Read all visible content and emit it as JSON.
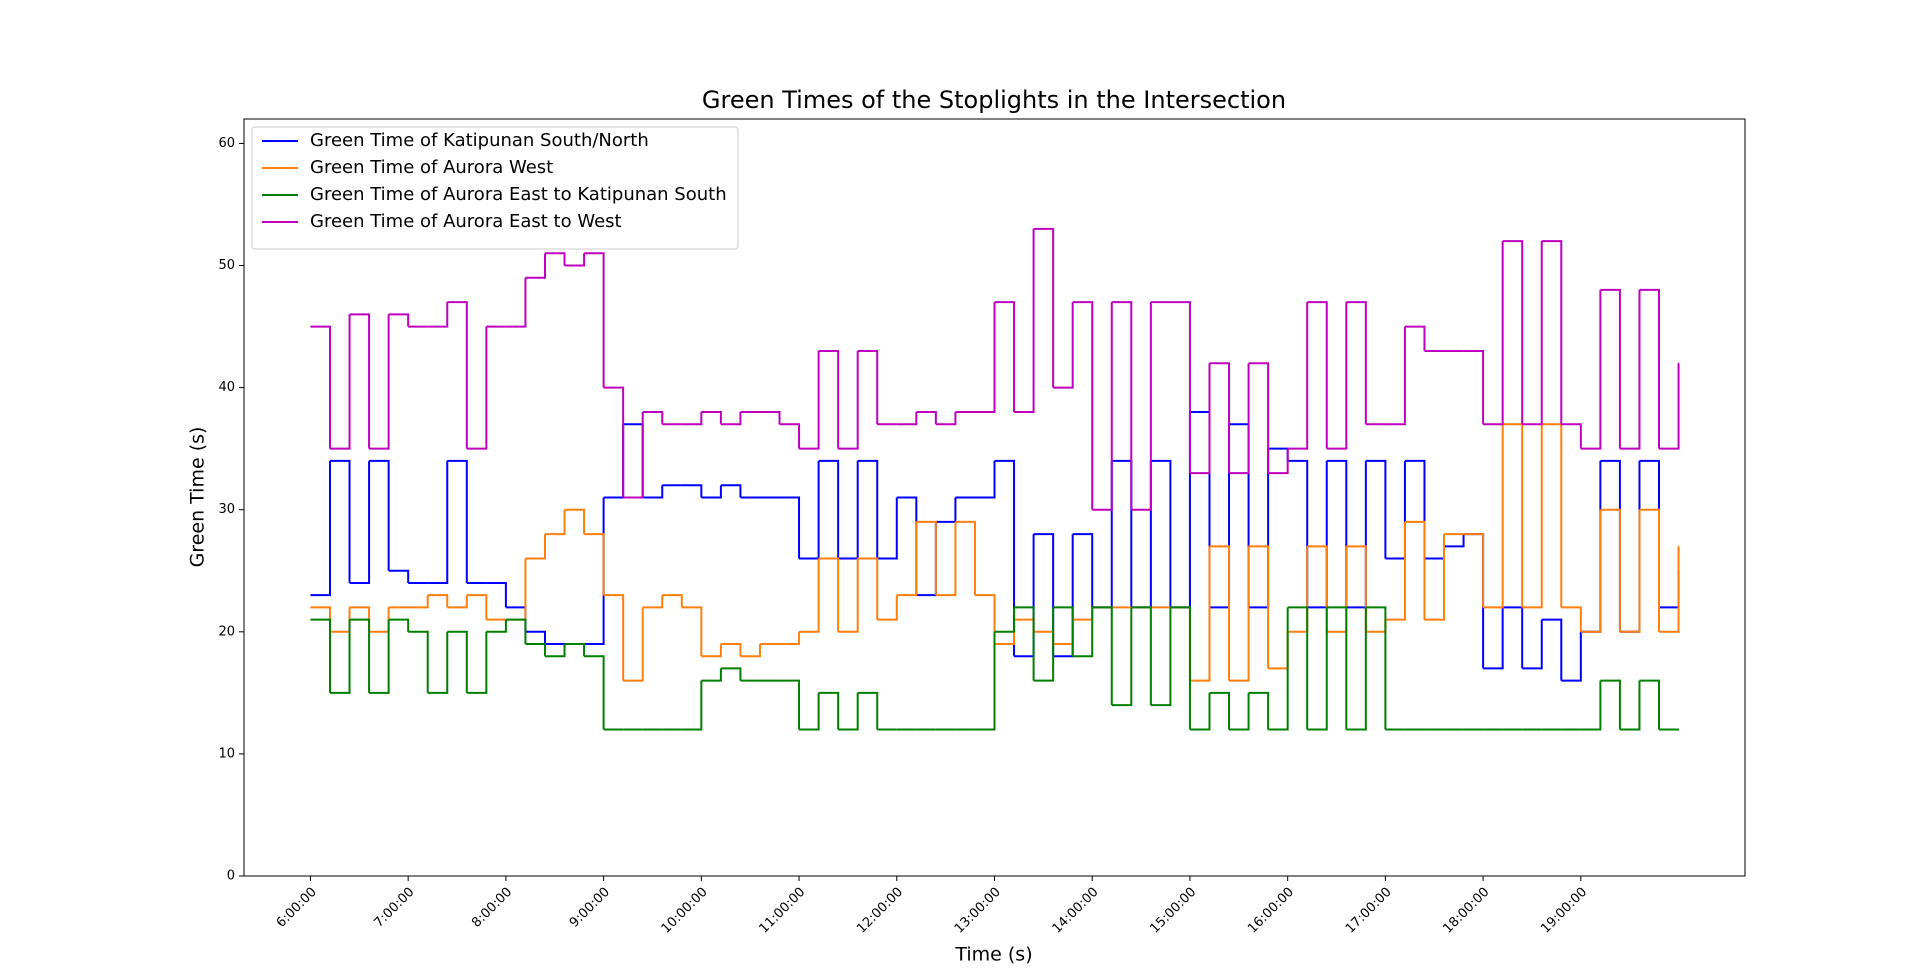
{
  "chart_data": {
    "type": "line",
    "step": "post",
    "title": "Green Times of the Stoplights in the Intersection",
    "x_label": "Time (s)",
    "y_label": "Green Time (s)",
    "x": [
      6.0,
      6.2,
      6.4,
      6.6,
      6.8,
      7.0,
      7.2,
      7.4,
      7.6,
      7.8,
      8.0,
      8.2,
      8.4,
      8.6,
      8.8,
      9.0,
      9.2,
      9.4,
      9.6,
      9.8,
      10.0,
      10.2,
      10.4,
      10.6,
      10.8,
      11.0,
      11.2,
      11.4,
      11.6,
      11.8,
      12.0,
      12.2,
      12.4,
      12.6,
      12.8,
      13.0,
      13.2,
      13.4,
      13.6,
      13.8,
      14.0,
      14.2,
      14.4,
      14.6,
      14.8,
      15.0,
      15.2,
      15.4,
      15.6,
      15.8,
      16.0,
      16.2,
      16.4,
      16.6,
      16.8,
      17.0,
      17.2,
      17.4,
      17.6,
      17.8,
      18.0,
      18.2,
      18.4,
      18.6,
      18.8,
      19.0,
      19.2,
      19.4,
      19.6,
      19.8,
      20.0
    ],
    "series": [
      {
        "name": "Green Time of Katipunan South/North",
        "color": "#0000ff",
        "values": [
          23,
          34,
          24,
          34,
          25,
          24,
          24,
          34,
          24,
          24,
          22,
          20,
          19,
          19,
          19,
          31,
          37,
          31,
          32,
          32,
          31,
          32,
          31,
          31,
          31,
          26,
          34,
          26,
          34,
          26,
          31,
          23,
          29,
          31,
          31,
          34,
          18,
          28,
          18,
          28,
          22,
          34,
          22,
          34,
          22,
          38,
          22,
          37,
          22,
          35,
          34,
          22,
          34,
          22,
          34,
          26,
          34,
          26,
          27,
          28,
          17,
          22,
          17,
          21,
          16,
          20,
          34,
          20,
          34,
          22,
          25
        ]
      },
      {
        "name": "Green Time of Aurora West",
        "color": "#ff7f0e",
        "values": [
          22,
          20,
          22,
          20,
          22,
          22,
          23,
          22,
          23,
          21,
          21,
          26,
          28,
          30,
          28,
          23,
          16,
          22,
          23,
          22,
          18,
          19,
          18,
          19,
          19,
          20,
          26,
          20,
          26,
          21,
          23,
          29,
          23,
          29,
          23,
          19,
          21,
          20,
          19,
          21,
          22,
          22,
          22,
          22,
          22,
          16,
          27,
          16,
          27,
          17,
          20,
          27,
          20,
          27,
          20,
          21,
          29,
          21,
          28,
          28,
          22,
          37,
          22,
          37,
          22,
          20,
          30,
          20,
          30,
          20,
          27
        ]
      },
      {
        "name": "Green Time of Aurora East to Katipunan South",
        "color": "#008000",
        "values": [
          21,
          15,
          21,
          15,
          21,
          20,
          15,
          20,
          15,
          20,
          21,
          19,
          18,
          19,
          18,
          12,
          12,
          12,
          12,
          12,
          16,
          17,
          16,
          16,
          16,
          12,
          15,
          12,
          15,
          12,
          12,
          12,
          12,
          12,
          12,
          20,
          22,
          16,
          22,
          18,
          22,
          14,
          22,
          14,
          22,
          12,
          15,
          12,
          15,
          12,
          22,
          12,
          22,
          12,
          22,
          12,
          12,
          12,
          12,
          12,
          12,
          12,
          12,
          12,
          12,
          12,
          16,
          12,
          16,
          12,
          12
        ]
      },
      {
        "name": "Green Time of Aurora East to West",
        "color": "#bf00bf",
        "values": [
          45,
          35,
          46,
          35,
          46,
          45,
          45,
          47,
          35,
          45,
          45,
          49,
          51,
          50,
          51,
          40,
          31,
          38,
          37,
          37,
          38,
          37,
          38,
          38,
          37,
          35,
          43,
          35,
          43,
          37,
          37,
          38,
          37,
          38,
          38,
          47,
          38,
          53,
          40,
          47,
          30,
          47,
          30,
          47,
          47,
          33,
          42,
          33,
          42,
          33,
          35,
          47,
          35,
          47,
          37,
          37,
          45,
          43,
          43,
          43,
          37,
          52,
          37,
          52,
          37,
          35,
          48,
          35,
          48,
          35,
          42
        ]
      }
    ],
    "xlim": [
      5.32,
      20.68
    ],
    "ylim": [
      0,
      62
    ],
    "xticks": [
      {
        "value": 6,
        "label": "6:00:00"
      },
      {
        "value": 7,
        "label": "7:00:00"
      },
      {
        "value": 8,
        "label": "8:00:00"
      },
      {
        "value": 9,
        "label": "9:00:00"
      },
      {
        "value": 10,
        "label": "10:00:00"
      },
      {
        "value": 11,
        "label": "11:00:00"
      },
      {
        "value": 12,
        "label": "12:00:00"
      },
      {
        "value": 13,
        "label": "13:00:00"
      },
      {
        "value": 14,
        "label": "14:00:00"
      },
      {
        "value": 15,
        "label": "15:00:00"
      },
      {
        "value": 16,
        "label": "16:00:00"
      },
      {
        "value": 17,
        "label": "17:00:00"
      },
      {
        "value": 18,
        "label": "18:00:00"
      },
      {
        "value": 19,
        "label": "19:00:00"
      }
    ],
    "yticks": [
      0,
      10,
      20,
      30,
      40,
      50,
      60
    ],
    "grid": false,
    "legend": "upper left"
  }
}
